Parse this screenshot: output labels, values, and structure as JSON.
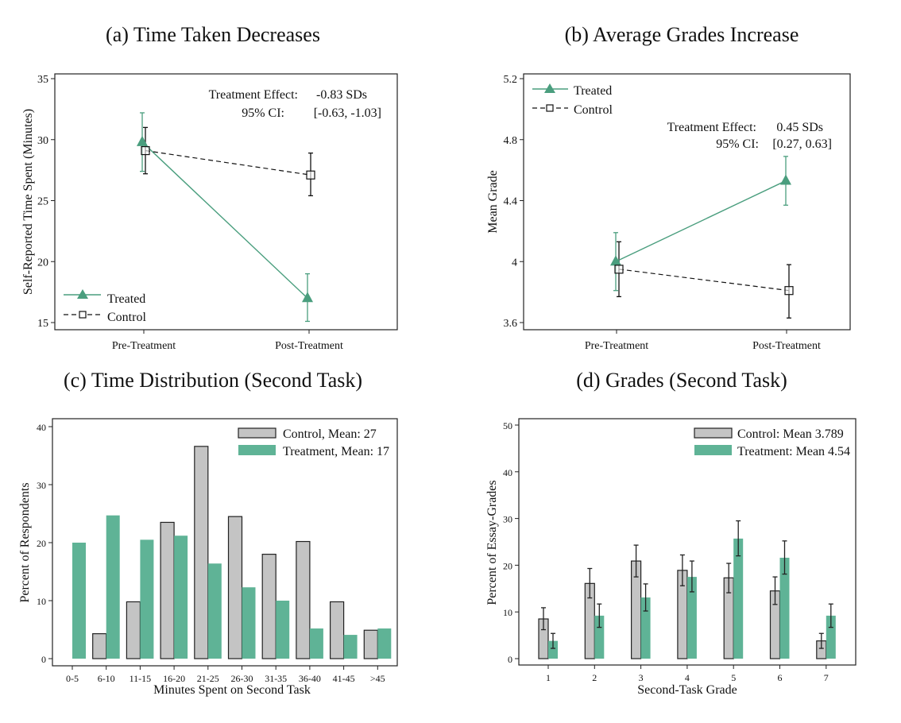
{
  "colors": {
    "treated": "#4a9e7e",
    "treated_fill": "#5fb396",
    "control": "#111111",
    "control_fill": "#c4c4c4"
  },
  "chart_data": [
    {
      "id": "a",
      "type": "line",
      "title": "(a) Time Taken Decreases",
      "xlabel": "",
      "ylabel": "Self-Reported Time Spent (Minutes)",
      "categories": [
        "Pre-Treatment",
        "Post-Treatment"
      ],
      "ylim": [
        15,
        35
      ],
      "yticks": [
        "15",
        "20",
        "25",
        "30",
        "35"
      ],
      "ytick_values": [
        15,
        20,
        25,
        30,
        35
      ],
      "grid": false,
      "legend_position": "bottom-left",
      "series": [
        {
          "name": "Treated",
          "values": [
            29.8,
            17.0
          ],
          "ci_low": [
            27.4,
            15.1
          ],
          "ci_high": [
            32.2,
            19.0
          ]
        },
        {
          "name": "Control",
          "values": [
            29.1,
            27.1
          ],
          "ci_low": [
            27.2,
            25.4
          ],
          "ci_high": [
            31.0,
            28.9
          ]
        }
      ],
      "annotation": {
        "line1_label": "Treatment Effect:",
        "line1_value": "-0.83 SDs",
        "line2_label": "95% CI:",
        "line2_value": "[-0.63, -1.03]"
      }
    },
    {
      "id": "b",
      "type": "line",
      "title": "(b) Average Grades Increase",
      "xlabel": "",
      "ylabel": "Mean Grade",
      "categories": [
        "Pre-Treatment",
        "Post-Treatment"
      ],
      "ylim": [
        3.6,
        5.2
      ],
      "yticks": [
        "3.6",
        "4",
        "4.4",
        "4.8",
        "5.2"
      ],
      "ytick_values": [
        3.6,
        4.0,
        4.4,
        4.8,
        5.2
      ],
      "grid": false,
      "legend_position": "top-left",
      "series": [
        {
          "name": "Treated",
          "values": [
            4.0,
            4.53
          ],
          "ci_low": [
            3.81,
            4.37
          ],
          "ci_high": [
            4.19,
            4.69
          ]
        },
        {
          "name": "Control",
          "values": [
            3.95,
            3.81
          ],
          "ci_low": [
            3.77,
            3.63
          ],
          "ci_high": [
            4.13,
            3.98
          ]
        }
      ],
      "annotation": {
        "line1_label": "Treatment Effect:",
        "line1_value": "0.45 SDs",
        "line2_label": "95% CI:",
        "line2_value": "[0.27, 0.63]"
      }
    },
    {
      "id": "c",
      "type": "bar",
      "title": "(c) Time Distribution (Second Task)",
      "xlabel": "Minutes Spent on Second Task",
      "ylabel": "Percent of Respondents",
      "categories": [
        "0-5",
        "6-10",
        "11-15",
        "16-20",
        "21-25",
        "26-30",
        "31-35",
        "36-40",
        "41-45",
        ">45"
      ],
      "ylim": [
        0,
        40
      ],
      "yticks": [
        "0",
        "10",
        "20",
        "30",
        "40"
      ],
      "ytick_values": [
        0,
        10,
        20,
        30,
        40
      ],
      "grid": false,
      "legend_position": "top-right",
      "series": [
        {
          "name": "Control, Mean: 27",
          "values": [
            0,
            4.3,
            9.8,
            23.5,
            36.6,
            24.5,
            18.0,
            20.2,
            9.8,
            4.9
          ]
        },
        {
          "name": "Treatment, Mean: 17",
          "values": [
            20.0,
            24.7,
            20.5,
            21.2,
            16.4,
            12.3,
            10.0,
            5.2,
            4.1,
            5.2
          ]
        }
      ]
    },
    {
      "id": "d",
      "type": "bar",
      "title": "(d) Grades (Second Task)",
      "xlabel": "Second-Task Grade",
      "ylabel": "Percent of Essay-Grades",
      "categories": [
        "1",
        "2",
        "3",
        "4",
        "5",
        "6",
        "7"
      ],
      "ylim": [
        0,
        50
      ],
      "yticks": [
        "0",
        "10",
        "20",
        "30",
        "40",
        "50"
      ],
      "ytick_values": [
        0,
        10,
        20,
        30,
        40,
        50
      ],
      "grid": false,
      "legend_position": "top-right",
      "series": [
        {
          "name": "Control: Mean 3.789",
          "values": [
            8.5,
            16.1,
            20.9,
            18.9,
            17.3,
            14.5,
            3.8
          ],
          "ci_low": [
            6.2,
            13.0,
            17.5,
            15.6,
            14.1,
            11.6,
            2.2
          ],
          "ci_high": [
            10.9,
            19.3,
            24.3,
            22.2,
            20.4,
            17.5,
            5.4
          ]
        },
        {
          "name": "Treatment: Mean 4.54",
          "values": [
            3.8,
            9.2,
            13.1,
            17.5,
            25.7,
            21.6,
            9.2
          ],
          "ci_low": [
            2.2,
            6.7,
            10.2,
            14.3,
            22.0,
            18.1,
            6.7
          ],
          "ci_high": [
            5.4,
            11.7,
            16.0,
            20.9,
            29.5,
            25.2,
            11.7
          ]
        }
      ]
    }
  ]
}
